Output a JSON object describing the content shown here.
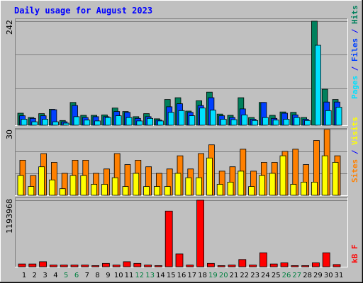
{
  "title": "Daily usage for August 2023",
  "colors": {
    "background": "#c0c0c0",
    "border_light": "#ffffff",
    "border_dark": "#808080",
    "gridline": "#808080",
    "title": "#0000ff",
    "weekday_label": "#000000",
    "weekend_label": "#008040",
    "separator": "#0000ff"
  },
  "chart_data": [
    {
      "type": "bar",
      "name": "hits-pages-files",
      "ytick_label": "242",
      "ymax": 242,
      "categories": [
        "1",
        "2",
        "3",
        "4",
        "5",
        "6",
        "7",
        "8",
        "9",
        "10",
        "11",
        "12",
        "13",
        "14",
        "15",
        "16",
        "17",
        "18",
        "19",
        "20",
        "21",
        "22",
        "23",
        "24",
        "25",
        "26",
        "27",
        "28",
        "29",
        "30",
        "31"
      ],
      "weekend_days": [
        "5",
        "6",
        "12",
        "13",
        "19",
        "20",
        "26",
        "27"
      ],
      "series": [
        {
          "name": "Hits",
          "color": "#00805c",
          "values": [
            28,
            18,
            27,
            37,
            11,
            53,
            23,
            23,
            24,
            40,
            32,
            20,
            27,
            15,
            60,
            64,
            33,
            57,
            77,
            26,
            23,
            64,
            18,
            53,
            23,
            31,
            30,
            18,
            242,
            84,
            60
          ]
        },
        {
          "name": "Files",
          "color": "#0040ff",
          "values": [
            22,
            16,
            22,
            36,
            8,
            46,
            18,
            20,
            20,
            32,
            30,
            16,
            20,
            12,
            43,
            50,
            30,
            46,
            64,
            22,
            18,
            38,
            14,
            53,
            16,
            28,
            24,
            14,
            0,
            54,
            54
          ]
        },
        {
          "name": "Pages",
          "color": "#00e0ff",
          "values": [
            14,
            8,
            14,
            8,
            5,
            20,
            12,
            10,
            18,
            22,
            18,
            10,
            16,
            10,
            30,
            34,
            22,
            40,
            35,
            14,
            13,
            24,
            11,
            18,
            12,
            14,
            18,
            11,
            186,
            34,
            42
          ]
        }
      ],
      "side_labels": [
        {
          "text": "Pages",
          "color": "#00e0ff"
        },
        {
          "text": " / ",
          "color": "#0000ff"
        },
        {
          "text": "Files",
          "color": "#0040ff"
        },
        {
          "text": " / ",
          "color": "#0000ff"
        },
        {
          "text": "Hits",
          "color": "#00805c"
        }
      ]
    },
    {
      "type": "bar",
      "name": "visits-sites",
      "ytick_label": "30",
      "ymax": 30,
      "categories": [
        "1",
        "2",
        "3",
        "4",
        "5",
        "6",
        "7",
        "8",
        "9",
        "10",
        "11",
        "12",
        "13",
        "14",
        "15",
        "16",
        "17",
        "18",
        "19",
        "20",
        "21",
        "22",
        "23",
        "24",
        "25",
        "26",
        "27",
        "28",
        "29",
        "30",
        "31"
      ],
      "series": [
        {
          "name": "Visits",
          "color": "#ff8000",
          "values": [
            16,
            9,
            19,
            15,
            10,
            16,
            16,
            10,
            12,
            19,
            14,
            16,
            13,
            10,
            12,
            18,
            12,
            19,
            23,
            11,
            13,
            21,
            11,
            15,
            15,
            20,
            21,
            14,
            25,
            30,
            18
          ]
        },
        {
          "name": "Sites",
          "color": "#ffff00",
          "values": [
            9,
            4,
            13,
            7,
            3,
            9,
            9,
            5,
            5,
            8,
            4,
            10,
            4,
            4,
            4,
            10,
            8,
            8,
            17,
            5,
            6,
            11,
            4,
            9,
            10,
            18,
            5,
            6,
            6,
            18,
            15
          ]
        }
      ],
      "side_labels": [
        {
          "text": "Sites",
          "color": "#ff8000"
        },
        {
          "text": " / ",
          "color": "#0000ff"
        },
        {
          "text": "Visits",
          "color": "#ffff00"
        }
      ]
    },
    {
      "type": "bar",
      "name": "kbytes",
      "ytick_label": "1193968",
      "ymax": 1193968,
      "categories": [
        "1",
        "2",
        "3",
        "4",
        "5",
        "6",
        "7",
        "8",
        "9",
        "10",
        "11",
        "12",
        "13",
        "14",
        "15",
        "16",
        "17",
        "18",
        "19",
        "20",
        "21",
        "22",
        "23",
        "24",
        "25",
        "26",
        "27",
        "28",
        "29",
        "30",
        "31"
      ],
      "series": [
        {
          "name": "kB F",
          "color": "#ff0000",
          "values": [
            50000,
            50000,
            90000,
            30000,
            30000,
            30000,
            30000,
            20000,
            60000,
            30000,
            90000,
            60000,
            30000,
            20000,
            1000000,
            230000,
            30000,
            1193968,
            60000,
            20000,
            30000,
            130000,
            30000,
            250000,
            50000,
            70000,
            20000,
            20000,
            70000,
            250000,
            40000
          ]
        }
      ],
      "side_labels": [
        {
          "text": "kB F",
          "color": "#ff0000"
        }
      ]
    }
  ]
}
